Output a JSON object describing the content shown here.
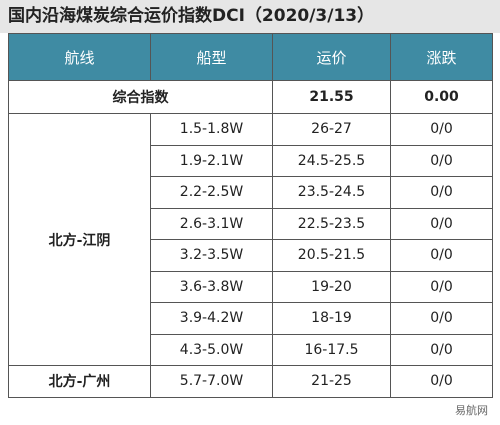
{
  "title": "国内沿海煤炭综合运价指数DCI（2020/3/13）",
  "table": {
    "header": [
      "航线",
      "船型",
      "运价",
      "涨跌"
    ],
    "summary": {
      "label": "综合指数",
      "rate": "21.55",
      "change": "0.00"
    },
    "groups": [
      {
        "route": "北方-江阴",
        "rows": [
          [
            "1.5-1.8W",
            "26-27",
            "0/0"
          ],
          [
            "1.9-2.1W",
            "24.5-25.5",
            "0/0"
          ],
          [
            "2.2-2.5W",
            "23.5-24.5",
            "0/0"
          ],
          [
            "2.6-3.1W",
            "22.5-23.5",
            "0/0"
          ],
          [
            "3.2-3.5W",
            "20.5-21.5",
            "0/0"
          ],
          [
            "3.6-3.8W",
            "19-20",
            "0/0"
          ],
          [
            "3.9-4.2W",
            "18-19",
            "0/0"
          ],
          [
            "4.3-5.0W",
            "16-17.5",
            "0/0"
          ]
        ]
      },
      {
        "route": "北方-广州",
        "rows": [
          [
            "5.7-7.0W",
            "21-25",
            "0/0"
          ]
        ]
      }
    ]
  },
  "watermark": "易航网"
}
